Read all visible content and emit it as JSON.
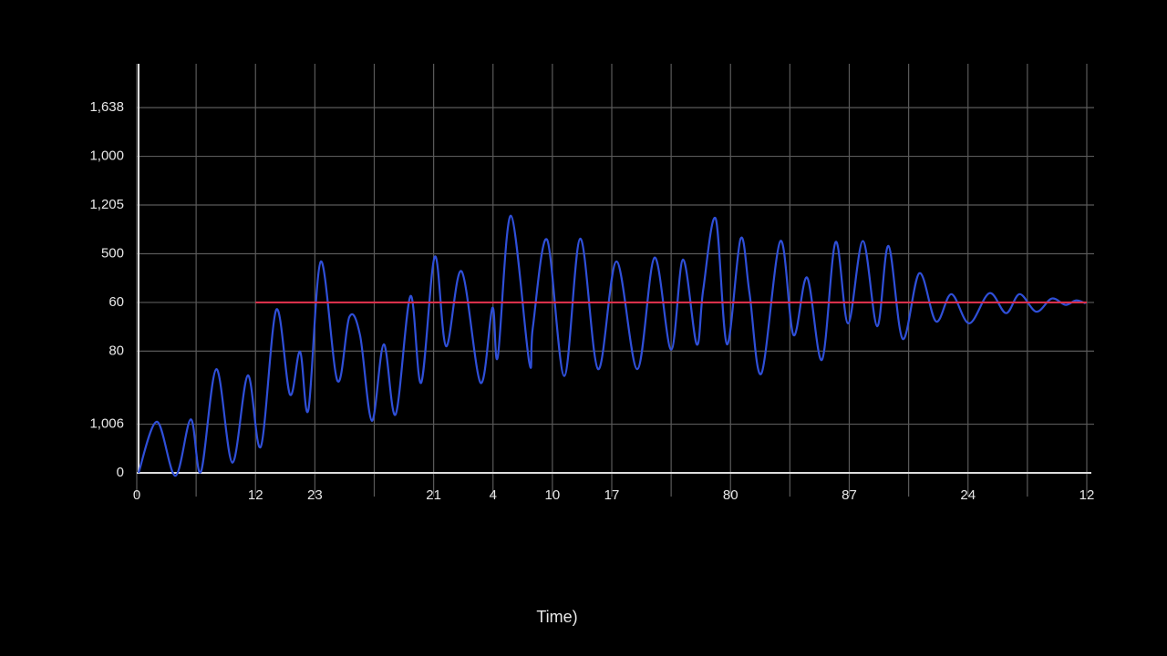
{
  "chart_data": {
    "type": "line",
    "x_label": "Time)",
    "xlim": [
      0,
      16
    ],
    "ylim": [
      0,
      8.4
    ],
    "xticks": [
      {
        "value": 0,
        "label": "0"
      },
      {
        "value": 2,
        "label": "12"
      },
      {
        "value": 3,
        "label": "23"
      },
      {
        "value": 5,
        "label": "21"
      },
      {
        "value": 6,
        "label": "4"
      },
      {
        "value": 7,
        "label": "10"
      },
      {
        "value": 8,
        "label": "17"
      },
      {
        "value": 10,
        "label": "80"
      },
      {
        "value": 12,
        "label": "87"
      },
      {
        "value": 14,
        "label": "24"
      },
      {
        "value": 16,
        "label": "12"
      }
    ],
    "xminor": [
      1,
      4,
      9,
      11,
      13,
      15
    ],
    "yticks": [
      0,
      {
        "value": 1,
        "label": "1,006"
      },
      {
        "value": 2.5,
        "label": "80"
      },
      {
        "value": 3.5,
        "label": "60"
      },
      {
        "value": 4.5,
        "label": "500"
      },
      {
        "value": 5.5,
        "label": "1,205"
      },
      {
        "value": 6.5,
        "label": "1,000"
      },
      {
        "value": 7.5,
        "label": "1,638"
      }
    ],
    "grid": true,
    "series": [
      {
        "color": "#2f4fd8",
        "x": [
          0.03,
          0.34,
          0.65,
          0.91,
          1.08,
          1.34,
          1.61,
          1.87,
          2.09,
          2.35,
          2.58,
          2.75,
          2.89,
          3.1,
          3.38,
          3.58,
          3.76,
          3.96,
          4.16,
          4.36,
          4.61,
          4.79,
          5.02,
          5.21,
          5.47,
          5.79,
          5.99,
          6.08,
          6.3,
          6.61,
          6.67,
          6.91,
          7.2,
          7.47,
          7.77,
          8.08,
          8.43,
          8.72,
          9.0,
          9.2,
          9.43,
          9.54,
          9.75,
          9.94,
          10.17,
          10.32,
          10.52,
          10.84,
          11.06,
          11.29,
          11.54,
          11.77,
          11.98,
          12.23,
          12.47,
          12.66,
          12.9,
          13.18,
          13.46,
          13.72,
          14.02,
          14.36,
          14.64,
          14.87,
          15.15,
          15.41,
          15.64,
          15.82,
          15.98
        ],
        "values": [
          0,
          1.05,
          -0.06,
          1.1,
          0.02,
          2.13,
          0.21,
          2.0,
          0.54,
          3.35,
          1.61,
          2.49,
          1.29,
          4.34,
          1.89,
          3.2,
          2.83,
          1.07,
          2.64,
          1.2,
          3.63,
          1.85,
          4.44,
          2.6,
          4.14,
          1.85,
          3.39,
          2.38,
          5.28,
          2.27,
          2.98,
          4.79,
          1.99,
          4.81,
          2.13,
          4.34,
          2.13,
          4.42,
          2.53,
          4.38,
          2.64,
          3.76,
          5.22,
          2.64,
          4.81,
          3.69,
          2.04,
          4.76,
          2.83,
          4.01,
          2.32,
          4.74,
          3.07,
          4.76,
          3.01,
          4.66,
          2.75,
          4.1,
          3.11,
          3.67,
          3.07,
          3.69,
          3.28,
          3.67,
          3.31,
          3.58,
          3.45,
          3.54,
          3.48
        ]
      },
      {
        "color": "#d8304a",
        "x": [
          2,
          16
        ],
        "values": [
          3.5,
          3.5
        ]
      }
    ]
  }
}
